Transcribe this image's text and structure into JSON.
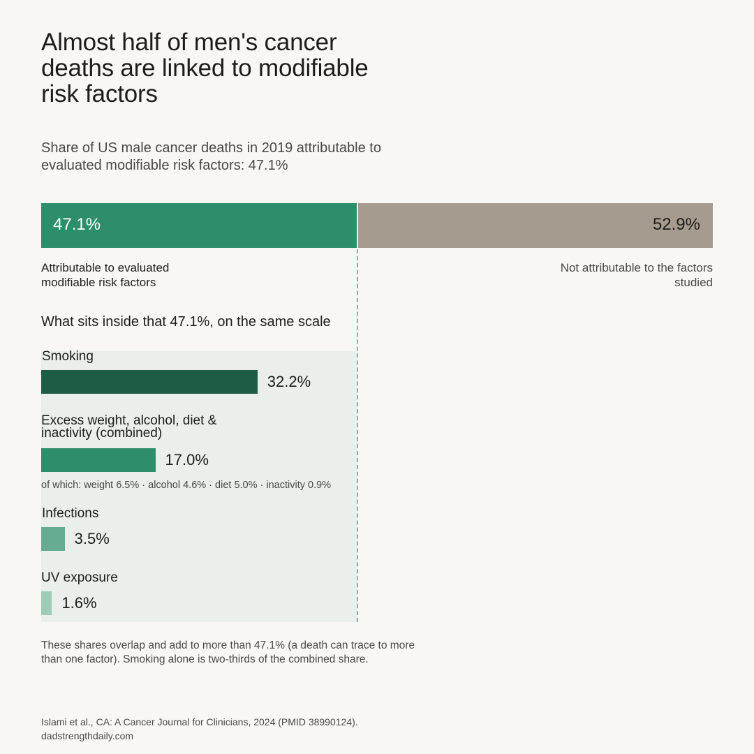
{
  "title": "Almost half of men's cancer deaths are linked to modifiable risk factors",
  "subtitle": "Share of US male cancer deaths in 2019 attributable to evaluated modifiable risk factors: 47.1%",
  "section_heading": "What sits inside that 47.1%, on the same scale",
  "detail_note": "of which: weight 6.5%  ·  alcohol 4.6%  ·  diet 5.0%  ·  inactivity 0.9%",
  "footnote": "These shares overlap and add to more than 47.1% (a death can trace to more than one factor). Smoking alone is two-thirds of the combined share.",
  "source": "Islami et al., CA: A Cancer Journal for Clinicians, 2024 (PMID 38990124).",
  "site": "dadstrengthdaily.com",
  "colors": {
    "attributable": "#2e8e6b",
    "not_attributable": "#a59b8e",
    "smoking": "#1e5c46",
    "combined": "#2e8e6b",
    "infections": "#66ac90",
    "uv": "#9fccb7"
  },
  "chart_data": [
    {
      "type": "bar",
      "orientation": "horizontal-stacked",
      "categories": [
        "Attributable to evaluated modifiable risk factors",
        "Not attributable to the factors studied"
      ],
      "values": [
        47.1,
        52.9
      ],
      "value_labels": [
        "47.1%",
        "52.9%"
      ],
      "xlim": [
        0,
        100
      ]
    },
    {
      "type": "bar",
      "orientation": "horizontal",
      "categories": [
        "Smoking",
        "Excess weight, alcohol, diet & inactivity (combined)",
        "Infections",
        "UV exposure"
      ],
      "values": [
        32.2,
        17.0,
        3.5,
        1.6
      ],
      "value_labels": [
        "32.2%",
        "17.0%",
        "3.5%",
        "1.6%"
      ],
      "xlim": [
        0,
        100
      ],
      "sub_breakdown": {
        "of": "Excess weight, alcohol, diet & inactivity (combined)",
        "items": [
          {
            "name": "weight",
            "value": 6.5
          },
          {
            "name": "alcohol",
            "value": 4.6
          },
          {
            "name": "diet",
            "value": 5.0
          },
          {
            "name": "inactivity",
            "value": 0.9
          }
        ]
      }
    }
  ]
}
